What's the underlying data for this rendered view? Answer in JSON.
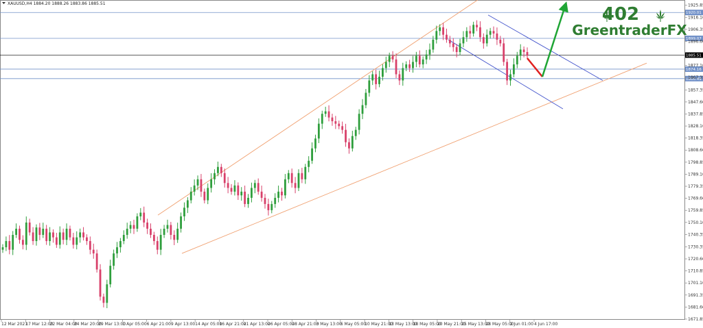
{
  "chart_data": {
    "type": "candlestick",
    "title": "XAUUSD,H4  1884.20 1888.26 1883.86 1885.51",
    "symbol": "XAUUSD",
    "timeframe": "H4",
    "last_bar": {
      "open": 1884.2,
      "high": 1888.26,
      "low": 1883.86,
      "close": 1885.51
    },
    "ylim": [
      1671.85,
      1929.0
    ],
    "y_ticks": [
      1925.85,
      1916.1,
      1906.35,
      1896.6,
      1877.1,
      1867.35,
      1857.35,
      1847.6,
      1837.85,
      1828.1,
      1818.35,
      1808.6,
      1798.85,
      1789.1,
      1779.35,
      1769.6,
      1759.85,
      1750.1,
      1740.35,
      1730.35,
      1720.6,
      1710.85,
      1701.1,
      1691.35,
      1681.6,
      1671.85
    ],
    "x_labels": [
      "12 Mar 2021",
      "17 Mar 12:00",
      "22 Mar 04:00",
      "24 Mar 20:00",
      "29 Mar 13:00",
      "1 Apr 05:00",
      "6 Apr 21:00",
      "9 Apr 13:00",
      "14 Apr 05:00",
      "16 Apr 21:00",
      "21 Apr 13:00",
      "26 Apr 05:00",
      "28 Apr 21:00",
      "3 May 13:00",
      "6 May 05:00",
      "10 May 21:00",
      "13 May 13:00",
      "18 May 05:00",
      "20 May 21:00",
      "25 May 13:00",
      "28 May 05:00",
      "2 Jun 01:00",
      "4 Jun 17:00"
    ],
    "horizontal_levels": [
      {
        "price": 1920.01,
        "label": "1920.01",
        "color": "#7090c8"
      },
      {
        "price": 1899.07,
        "label": "1899.07",
        "color": "#7090c8"
      },
      {
        "price": 1885.51,
        "label": "1885.51",
        "color": "#000000",
        "current": true
      },
      {
        "price": 1874.16,
        "label": "1874.16",
        "color": "#7090c8"
      },
      {
        "price": 1866.49,
        "label": "1866.49",
        "color": "#7090c8"
      }
    ],
    "closes": [
      1730,
      1735,
      1728,
      1740,
      1745,
      1736,
      1732,
      1750,
      1742,
      1735,
      1746,
      1740,
      1745,
      1735,
      1742,
      1738,
      1732,
      1742,
      1736,
      1745,
      1738,
      1732,
      1738,
      1742,
      1738,
      1735,
      1728,
      1725,
      1712,
      1690,
      1685,
      1700,
      1715,
      1725,
      1730,
      1735,
      1740,
      1745,
      1748,
      1745,
      1755,
      1758,
      1750,
      1745,
      1740,
      1735,
      1728,
      1740,
      1745,
      1748,
      1740,
      1736,
      1745,
      1755,
      1762,
      1768,
      1775,
      1780,
      1785,
      1775,
      1768,
      1778,
      1785,
      1790,
      1795,
      1790,
      1782,
      1778,
      1775,
      1780,
      1772,
      1775,
      1765,
      1770,
      1778,
      1782,
      1775,
      1770,
      1765,
      1760,
      1765,
      1770,
      1775,
      1772,
      1785,
      1790,
      1782,
      1778,
      1790,
      1785,
      1795,
      1800,
      1810,
      1818,
      1830,
      1838,
      1840,
      1835,
      1832,
      1830,
      1828,
      1825,
      1815,
      1810,
      1820,
      1825,
      1838,
      1845,
      1855,
      1865,
      1870,
      1862,
      1868,
      1875,
      1880,
      1885,
      1882,
      1870,
      1865,
      1875,
      1878,
      1875,
      1880,
      1885,
      1878,
      1882,
      1886,
      1890,
      1898,
      1905,
      1908,
      1902,
      1898,
      1895,
      1892,
      1888,
      1895,
      1900,
      1905,
      1903,
      1910,
      1908,
      1900,
      1895,
      1902,
      1905,
      1903,
      1898,
      1895,
      1880,
      1865,
      1870,
      1878,
      1885,
      1890,
      1888,
      1885
    ]
  },
  "annotations": {
    "projection_down_color": "#e02020",
    "projection_up_color": "#1fa535",
    "channel_color": "#f0a070",
    "short_channel_color": "#4455cc"
  },
  "branding": {
    "number": "402",
    "name": "GreentraderFX",
    "leaf_icon": "cannabis-leaf-icon",
    "color": "#2f7d32"
  },
  "colors": {
    "bull": "#2e9e3c",
    "bear": "#d8406a",
    "axis_bg": "#ffffff",
    "border": "#888888"
  }
}
